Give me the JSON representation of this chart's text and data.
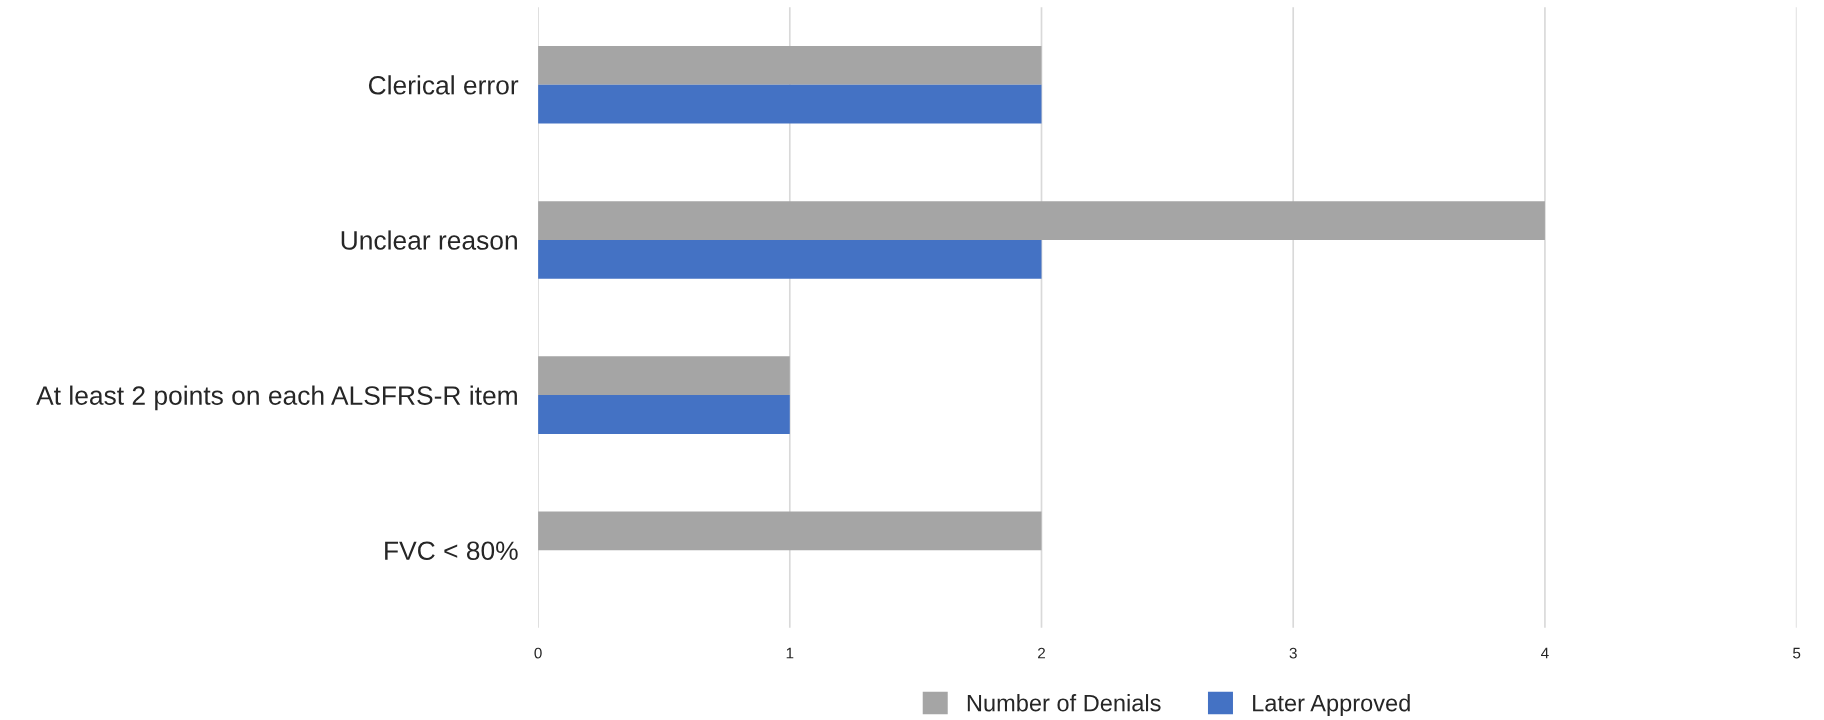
{
  "chart_data": {
    "type": "bar",
    "orientation": "horizontal",
    "categories": [
      "Clerical error",
      "Unclear reason",
      "At least 2 points on each ALSFRS-R item",
      "FVC < 80%"
    ],
    "series": [
      {
        "name": "Number of Denials",
        "color": "#a5a5a5",
        "values": [
          2,
          4,
          1,
          2
        ]
      },
      {
        "name": "Later Approved",
        "color": "#4472c4",
        "values": [
          2,
          2,
          1,
          null
        ]
      }
    ],
    "xlim": [
      0,
      5
    ],
    "xticks": [
      0,
      1,
      2,
      3,
      4,
      5
    ],
    "grid": "x",
    "legend": "bottom"
  }
}
